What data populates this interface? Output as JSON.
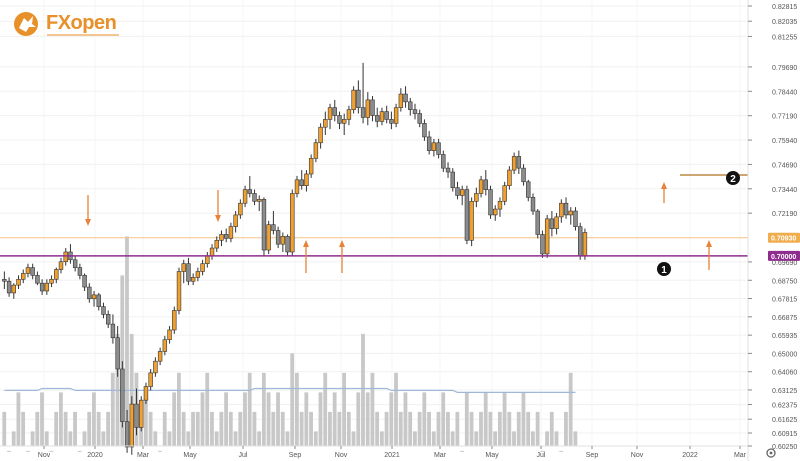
{
  "brand": {
    "name": "FXopen",
    "color": "#e8912b"
  },
  "chart_data": {
    "type": "candlestick",
    "yaxis": {
      "ticks": [
        "0.82815",
        "0.82035",
        "0.81255",
        "0.79690",
        "0.78440",
        "0.77190",
        "0.75940",
        "0.74690",
        "0.73440",
        "0.72190",
        "0.69690",
        "0.68750",
        "0.67815",
        "0.66875",
        "0.65935",
        "0.65000",
        "0.64060",
        "0.63125",
        "0.62375",
        "0.61625",
        "0.60915",
        "0.60250"
      ],
      "range": [
        0.6025,
        0.82815
      ]
    },
    "xaxis": {
      "ticks": [
        "Nov",
        "2020",
        "Mar",
        "May",
        "Jul",
        "Sep",
        "Nov",
        "2021",
        "Mar",
        "May",
        "Jul",
        "Sep",
        "Nov",
        "2022",
        "Mar"
      ]
    },
    "price_labels": [
      {
        "text": "0.70930",
        "value": 0.7093,
        "color": "#f0ad4e"
      },
      {
        "text": "0.70000",
        "value": 0.7,
        "color": "#8e2d8e"
      }
    ],
    "horizontal_lines": [
      {
        "value": 0.7,
        "color": "#8e2d8e"
      },
      {
        "value": 0.7093,
        "color": "#f5c48a"
      }
    ],
    "markers": [
      "1",
      "2"
    ],
    "colors": {
      "up": "#f0a030",
      "down": "#8c8c8c",
      "volume": "#c8c8c8",
      "volume_ma": "#9fb8d8",
      "arrow": "#e8823a"
    },
    "candles": [
      [
        0.688,
        0.692,
        0.683,
        0.687
      ],
      [
        0.687,
        0.689,
        0.679,
        0.681
      ],
      [
        0.681,
        0.686,
        0.678,
        0.685
      ],
      [
        0.685,
        0.69,
        0.683,
        0.688
      ],
      [
        0.688,
        0.693,
        0.686,
        0.691
      ],
      [
        0.691,
        0.696,
        0.689,
        0.694
      ],
      [
        0.694,
        0.696,
        0.688,
        0.69
      ],
      [
        0.69,
        0.692,
        0.685,
        0.686
      ],
      [
        0.686,
        0.688,
        0.68,
        0.682
      ],
      [
        0.682,
        0.688,
        0.68,
        0.686
      ],
      [
        0.686,
        0.69,
        0.684,
        0.688
      ],
      [
        0.688,
        0.694,
        0.686,
        0.693
      ],
      [
        0.693,
        0.699,
        0.691,
        0.697
      ],
      [
        0.697,
        0.704,
        0.695,
        0.702
      ],
      [
        0.702,
        0.706,
        0.696,
        0.698
      ],
      [
        0.698,
        0.7,
        0.692,
        0.694
      ],
      [
        0.694,
        0.696,
        0.688,
        0.69
      ],
      [
        0.69,
        0.691,
        0.682,
        0.684
      ],
      [
        0.684,
        0.686,
        0.676,
        0.678
      ],
      [
        0.678,
        0.682,
        0.674,
        0.68
      ],
      [
        0.68,
        0.681,
        0.672,
        0.674
      ],
      [
        0.674,
        0.676,
        0.668,
        0.67
      ],
      [
        0.67,
        0.672,
        0.663,
        0.665
      ],
      [
        0.665,
        0.67,
        0.655,
        0.658
      ],
      [
        0.658,
        0.664,
        0.638,
        0.642
      ],
      [
        0.642,
        0.646,
        0.612,
        0.615
      ],
      [
        0.615,
        0.621,
        0.599,
        0.602
      ],
      [
        0.602,
        0.628,
        0.598,
        0.624
      ],
      [
        0.624,
        0.632,
        0.608,
        0.612
      ],
      [
        0.612,
        0.628,
        0.61,
        0.626
      ],
      [
        0.626,
        0.635,
        0.624,
        0.633
      ],
      [
        0.633,
        0.642,
        0.631,
        0.64
      ],
      [
        0.64,
        0.648,
        0.638,
        0.646
      ],
      [
        0.646,
        0.653,
        0.644,
        0.651
      ],
      [
        0.651,
        0.659,
        0.649,
        0.657
      ],
      [
        0.657,
        0.664,
        0.655,
        0.662
      ],
      [
        0.662,
        0.674,
        0.66,
        0.672
      ],
      [
        0.672,
        0.694,
        0.67,
        0.692
      ],
      [
        0.692,
        0.698,
        0.686,
        0.696
      ],
      [
        0.696,
        0.699,
        0.685,
        0.687
      ],
      [
        0.687,
        0.691,
        0.685,
        0.689
      ],
      [
        0.689,
        0.694,
        0.687,
        0.692
      ],
      [
        0.692,
        0.698,
        0.69,
        0.696
      ],
      [
        0.696,
        0.702,
        0.694,
        0.7
      ],
      [
        0.7,
        0.706,
        0.698,
        0.704
      ],
      [
        0.704,
        0.71,
        0.702,
        0.708
      ],
      [
        0.708,
        0.713,
        0.705,
        0.711
      ],
      [
        0.711,
        0.714,
        0.707,
        0.709
      ],
      [
        0.709,
        0.717,
        0.707,
        0.715
      ],
      [
        0.715,
        0.723,
        0.712,
        0.721
      ],
      [
        0.721,
        0.729,
        0.719,
        0.727
      ],
      [
        0.727,
        0.736,
        0.725,
        0.734
      ],
      [
        0.734,
        0.741,
        0.73,
        0.732
      ],
      [
        0.732,
        0.734,
        0.726,
        0.728
      ],
      [
        0.728,
        0.731,
        0.723,
        0.729
      ],
      [
        0.729,
        0.73,
        0.7,
        0.703
      ],
      [
        0.703,
        0.718,
        0.701,
        0.716
      ],
      [
        0.716,
        0.723,
        0.711,
        0.713
      ],
      [
        0.713,
        0.715,
        0.704,
        0.706
      ],
      [
        0.706,
        0.712,
        0.702,
        0.71
      ],
      [
        0.71,
        0.711,
        0.7,
        0.702
      ],
      [
        0.702,
        0.734,
        0.7,
        0.732
      ],
      [
        0.732,
        0.741,
        0.73,
        0.739
      ],
      [
        0.739,
        0.744,
        0.734,
        0.736
      ],
      [
        0.736,
        0.744,
        0.733,
        0.742
      ],
      [
        0.742,
        0.752,
        0.74,
        0.75
      ],
      [
        0.75,
        0.76,
        0.748,
        0.758
      ],
      [
        0.758,
        0.768,
        0.755,
        0.766
      ],
      [
        0.766,
        0.774,
        0.762,
        0.77
      ],
      [
        0.77,
        0.778,
        0.765,
        0.776
      ],
      [
        0.776,
        0.78,
        0.769,
        0.772
      ],
      [
        0.772,
        0.774,
        0.765,
        0.768
      ],
      [
        0.768,
        0.773,
        0.762,
        0.77
      ],
      [
        0.77,
        0.777,
        0.767,
        0.775
      ],
      [
        0.775,
        0.787,
        0.773,
        0.785
      ],
      [
        0.785,
        0.79,
        0.773,
        0.776
      ],
      [
        0.776,
        0.799,
        0.768,
        0.771
      ],
      [
        0.771,
        0.784,
        0.767,
        0.78
      ],
      [
        0.78,
        0.782,
        0.769,
        0.772
      ],
      [
        0.772,
        0.776,
        0.766,
        0.769
      ],
      [
        0.769,
        0.776,
        0.767,
        0.774
      ],
      [
        0.774,
        0.777,
        0.768,
        0.77
      ],
      [
        0.77,
        0.774,
        0.765,
        0.768
      ],
      [
        0.768,
        0.778,
        0.766,
        0.776
      ],
      [
        0.776,
        0.786,
        0.774,
        0.783
      ],
      [
        0.783,
        0.787,
        0.776,
        0.779
      ],
      [
        0.779,
        0.781,
        0.772,
        0.775
      ],
      [
        0.775,
        0.778,
        0.77,
        0.773
      ],
      [
        0.773,
        0.775,
        0.766,
        0.768
      ],
      [
        0.768,
        0.77,
        0.759,
        0.761
      ],
      [
        0.761,
        0.764,
        0.752,
        0.754
      ],
      [
        0.754,
        0.76,
        0.751,
        0.758
      ],
      [
        0.758,
        0.76,
        0.75,
        0.752
      ],
      [
        0.752,
        0.754,
        0.743,
        0.745
      ],
      [
        0.745,
        0.748,
        0.74,
        0.743
      ],
      [
        0.743,
        0.745,
        0.733,
        0.735
      ],
      [
        0.735,
        0.738,
        0.729,
        0.731
      ],
      [
        0.731,
        0.736,
        0.726,
        0.734
      ],
      [
        0.734,
        0.736,
        0.706,
        0.708
      ],
      [
        0.708,
        0.73,
        0.705,
        0.728
      ],
      [
        0.728,
        0.735,
        0.725,
        0.732
      ],
      [
        0.732,
        0.741,
        0.73,
        0.739
      ],
      [
        0.739,
        0.744,
        0.731,
        0.734
      ],
      [
        0.734,
        0.736,
        0.719,
        0.721
      ],
      [
        0.721,
        0.726,
        0.718,
        0.724
      ],
      [
        0.724,
        0.73,
        0.72,
        0.728
      ],
      [
        0.728,
        0.738,
        0.726,
        0.736
      ],
      [
        0.736,
        0.746,
        0.734,
        0.744
      ],
      [
        0.744,
        0.753,
        0.742,
        0.751
      ],
      [
        0.751,
        0.754,
        0.742,
        0.745
      ],
      [
        0.745,
        0.747,
        0.736,
        0.738
      ],
      [
        0.738,
        0.739,
        0.728,
        0.73
      ],
      [
        0.73,
        0.732,
        0.721,
        0.723
      ],
      [
        0.723,
        0.724,
        0.709,
        0.711
      ],
      [
        0.711,
        0.713,
        0.699,
        0.701
      ],
      [
        0.701,
        0.721,
        0.699,
        0.719
      ],
      [
        0.719,
        0.723,
        0.71,
        0.714
      ],
      [
        0.714,
        0.722,
        0.711,
        0.72
      ],
      [
        0.72,
        0.729,
        0.717,
        0.727
      ],
      [
        0.727,
        0.73,
        0.719,
        0.721
      ],
      [
        0.721,
        0.725,
        0.716,
        0.723
      ],
      [
        0.723,
        0.725,
        0.713,
        0.715
      ],
      [
        0.715,
        0.717,
        0.698,
        0.7
      ],
      [
        0.7,
        0.714,
        0.698,
        0.712
      ]
    ],
    "volumes": [
      0.62,
      0.6,
      0.61,
      0.63,
      0.62,
      0.6,
      0.61,
      0.62,
      0.63,
      0.61,
      0.6,
      0.62,
      0.63,
      0.62,
      0.61,
      0.62,
      0.6,
      0.61,
      0.62,
      0.63,
      0.62,
      0.61,
      0.62,
      0.64,
      0.66,
      0.69,
      0.71,
      0.66,
      0.64,
      0.62,
      0.63,
      0.62,
      0.61,
      0.6,
      0.62,
      0.61,
      0.63,
      0.64,
      0.62,
      0.61,
      0.62,
      0.62,
      0.63,
      0.64,
      0.62,
      0.61,
      0.62,
      0.63,
      0.62,
      0.61,
      0.62,
      0.63,
      0.64,
      0.62,
      0.61,
      0.64,
      0.63,
      0.62,
      0.63,
      0.62,
      0.61,
      0.65,
      0.64,
      0.62,
      0.63,
      0.62,
      0.61,
      0.63,
      0.64,
      0.62,
      0.63,
      0.62,
      0.64,
      0.62,
      0.61,
      0.63,
      0.66,
      0.63,
      0.64,
      0.62,
      0.61,
      0.62,
      0.63,
      0.64,
      0.62,
      0.63,
      0.62,
      0.61,
      0.62,
      0.63,
      0.62,
      0.61,
      0.62,
      0.63,
      0.62,
      0.61,
      0.62,
      0.6,
      0.63,
      0.62,
      0.61,
      0.62,
      0.63,
      0.62,
      0.61,
      0.62,
      0.63,
      0.62,
      0.61,
      0.62,
      0.63,
      0.62,
      0.61,
      0.62,
      0.6,
      0.61,
      0.62,
      0.61,
      0.6,
      0.62,
      0.64,
      0.61
    ],
    "volume_ma": [
      0.631,
      0.631,
      0.631,
      0.631,
      0.631,
      0.631,
      0.631,
      0.631,
      0.632,
      0.632,
      0.632,
      0.632,
      0.632,
      0.632,
      0.632,
      0.631,
      0.631,
      0.631,
      0.631,
      0.631,
      0.631,
      0.631,
      0.631,
      0.631,
      0.631,
      0.631,
      0.631,
      0.631,
      0.631,
      0.631,
      0.631,
      0.631,
      0.631,
      0.631,
      0.631,
      0.631,
      0.631,
      0.631,
      0.631,
      0.631,
      0.631,
      0.631,
      0.631,
      0.631,
      0.631,
      0.631,
      0.631,
      0.631,
      0.631,
      0.631,
      0.631,
      0.631,
      0.631,
      0.632,
      0.632,
      0.632,
      0.632,
      0.632,
      0.632,
      0.632,
      0.632,
      0.632,
      0.632,
      0.632,
      0.632,
      0.632,
      0.632,
      0.632,
      0.632,
      0.632,
      0.632,
      0.632,
      0.632,
      0.632,
      0.632,
      0.632,
      0.632,
      0.632,
      0.632,
      0.632,
      0.632,
      0.632,
      0.631,
      0.631,
      0.631,
      0.631,
      0.631,
      0.631,
      0.631,
      0.631,
      0.631,
      0.631,
      0.631,
      0.631,
      0.631,
      0.631,
      0.63,
      0.63,
      0.63,
      0.63,
      0.63,
      0.63,
      0.63,
      0.63,
      0.63,
      0.63,
      0.63,
      0.63,
      0.63,
      0.63,
      0.63,
      0.63,
      0.63,
      0.63,
      0.63,
      0.63,
      0.63,
      0.63,
      0.63,
      0.63,
      0.63,
      0.63
    ]
  }
}
